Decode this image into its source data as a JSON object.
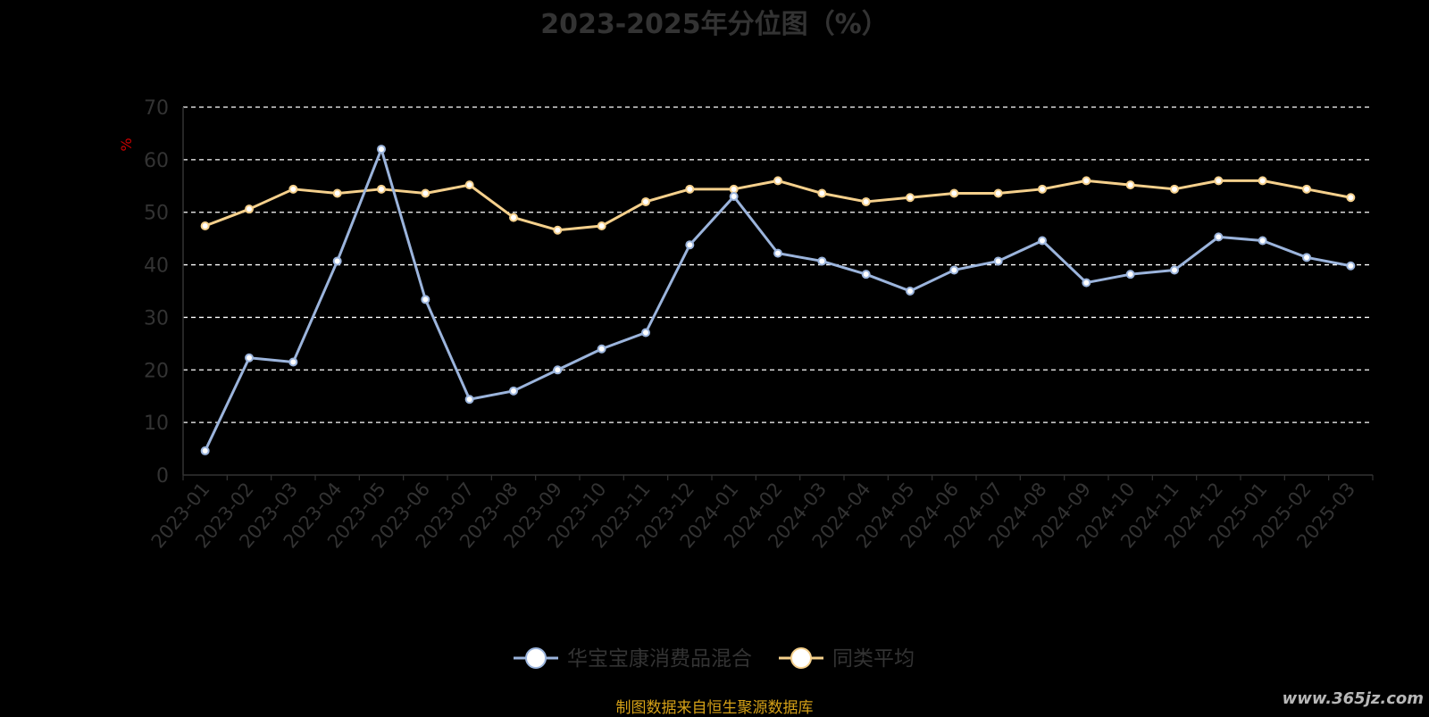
{
  "title": "2023-2025年分位图（%）",
  "source_note": "制图数据来自恒生聚源数据库",
  "watermark": "www.365jz.com",
  "colors": {
    "background": "#000000",
    "axis_text": "#333333",
    "grid": "#ffffff",
    "ylabel": "#cc0000",
    "series_fund": "#9bb4dc",
    "series_avg": "#f5d08c"
  },
  "chart_data": {
    "type": "line",
    "title": "2023-2025年分位图（%）",
    "xlabel": "",
    "ylabel": "%",
    "ylim": [
      0,
      70
    ],
    "yticks": [
      0,
      10,
      20,
      30,
      40,
      50,
      60,
      70
    ],
    "grid": true,
    "legend": "bottom-center",
    "x": [
      "2023-01",
      "2023-02",
      "2023-03",
      "2023-04",
      "2023-05",
      "2023-06",
      "2023-07",
      "2023-08",
      "2023-09",
      "2023-10",
      "2023-11",
      "2023-12",
      "2024-01",
      "2024-02",
      "2024-03",
      "2024-04",
      "2024-05",
      "2024-06",
      "2024-07",
      "2024-08",
      "2024-09",
      "2024-10",
      "2024-11",
      "2024-12",
      "2025-01",
      "2025-02",
      "2025-03"
    ],
    "series": [
      {
        "name": "华宝宝康消费品混合",
        "color": "#9bb4dc",
        "values": [
          4.6,
          22.3,
          21.5,
          40.7,
          62.0,
          33.4,
          14.4,
          16.0,
          20.0,
          24.0,
          27.1,
          43.8,
          53.0,
          42.2,
          40.7,
          38.2,
          35.0,
          39.0,
          40.7,
          44.6,
          36.6,
          38.2,
          39.0,
          45.3,
          44.6,
          41.4,
          39.8
        ]
      },
      {
        "name": "同类平均",
        "color": "#f5d08c",
        "values": [
          47.4,
          50.6,
          54.4,
          53.6,
          54.4,
          53.6,
          55.2,
          49.0,
          46.6,
          47.4,
          52.0,
          54.4,
          54.4,
          56.0,
          53.6,
          52.0,
          52.8,
          53.6,
          53.6,
          54.4,
          56.0,
          55.2,
          54.4,
          56.0,
          56.0,
          54.4,
          52.8
        ]
      }
    ]
  }
}
